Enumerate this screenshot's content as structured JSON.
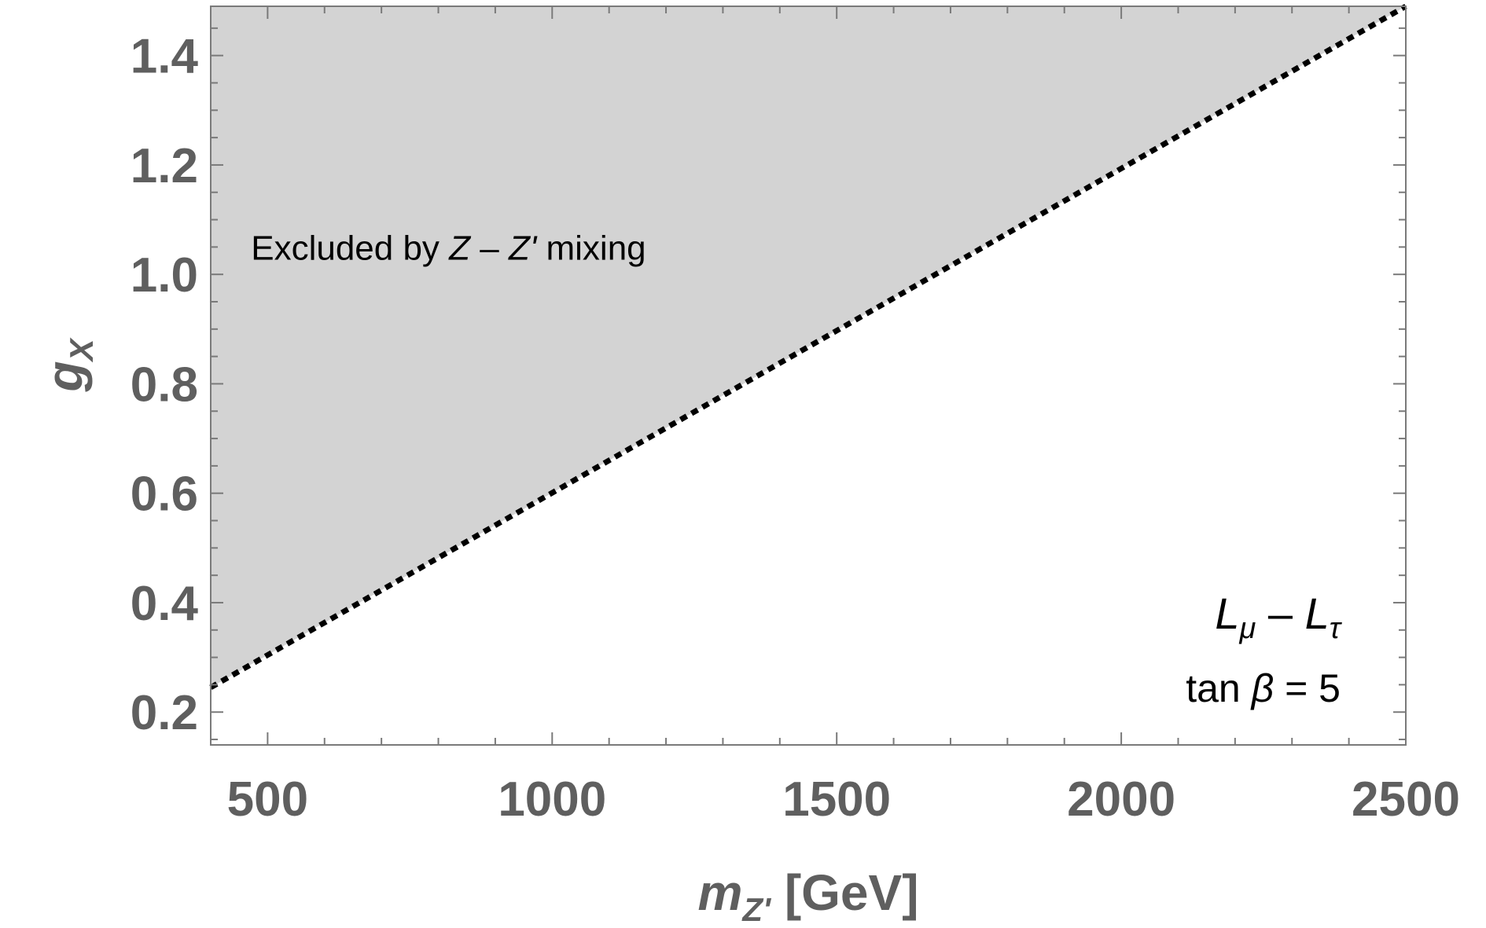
{
  "chart_data": {
    "type": "area",
    "x_range": [
      400,
      2500
    ],
    "y_range": [
      0.14,
      1.49
    ],
    "x_ticks": [
      500,
      1000,
      1500,
      2000,
      2500
    ],
    "y_ticks": [
      0.2,
      0.4,
      0.6,
      0.8,
      1.0,
      1.2,
      1.4
    ],
    "x_tick_labels": [
      "500",
      "1000",
      "1500",
      "2000",
      "2500"
    ],
    "y_tick_labels": [
      "0.2",
      "0.4",
      "0.6",
      "0.8",
      "1.0",
      "1.2",
      "1.4"
    ],
    "x_minor_step": 100,
    "y_minor_step": 0.05,
    "xlabel": {
      "main": "m",
      "sub": "Z'",
      "unit": " [GeV]"
    },
    "ylabel": {
      "main": "g",
      "sub": "X"
    },
    "boundary_line": {
      "style": "dashed",
      "x": [
        400,
        2500
      ],
      "y": [
        0.245,
        1.49
      ]
    },
    "excluded_region": {
      "label_prefix": "Excluded by ",
      "label_z1": "Z",
      "label_dash": " – ",
      "label_z2": "Z'",
      "label_suffix": " mixing",
      "anchor_x": 620,
      "anchor_y": 1.05
    },
    "model_annotation": {
      "L1": "L",
      "L1_sub": "μ",
      "minus": " – ",
      "L2": "L",
      "L2_sub": "τ",
      "param_prefix": "tan ",
      "param_symbol": "β",
      "param_suffix": " = 5"
    },
    "colors": {
      "excluded_fill": "#d3d3d3",
      "boundary": "#000000",
      "frame": "#7a7a7a",
      "tick_text": "#5f5f5f",
      "background": "#ffffff"
    },
    "grid": false
  }
}
